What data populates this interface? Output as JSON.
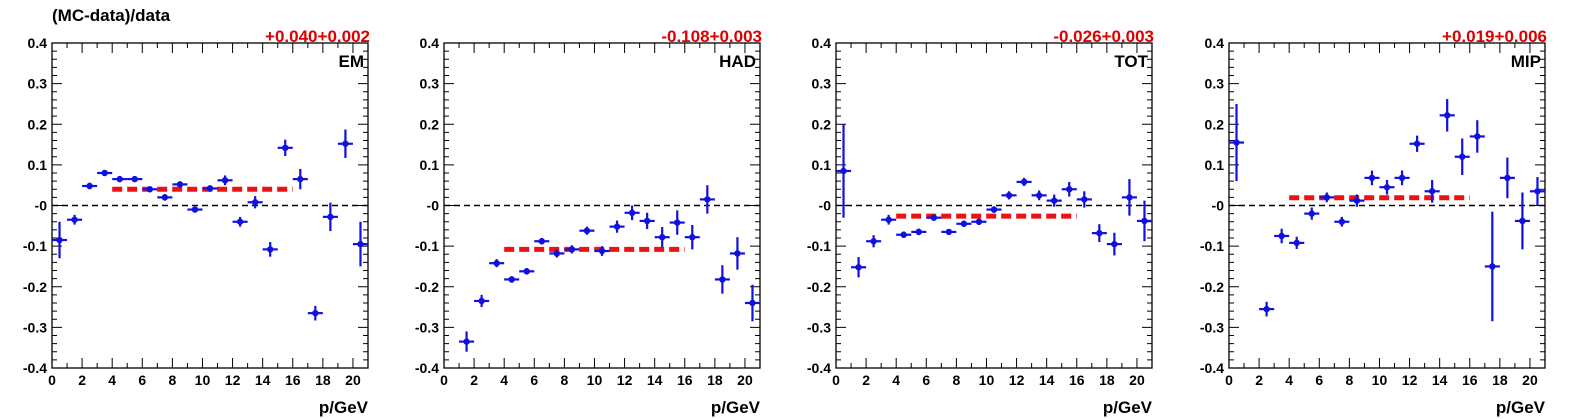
{
  "figure": {
    "ylabel": "(MC-data)/data",
    "xlabel": "p/GeV"
  },
  "colors": {
    "points": "#1010e0",
    "fit": "#ee1111",
    "annotation": "#dd0000",
    "zero_line": "#000000"
  },
  "chart_data": [
    {
      "type": "scatter",
      "panel_label": "EM",
      "annotation": "+0.040+0.002",
      "xlabel": "p/GeV",
      "xlim": [
        0,
        21
      ],
      "ylim": [
        -0.4,
        0.4
      ],
      "x_ticks": [
        0,
        2,
        4,
        6,
        8,
        10,
        12,
        14,
        16,
        18,
        20
      ],
      "y_ticks": [
        "-0.4",
        "-0.3",
        "-0.2",
        "-0.1",
        "-0",
        "0.1",
        "0.2",
        "0.3",
        "0.4"
      ],
      "fit": {
        "value": 0.04,
        "x_range": [
          4,
          16
        ]
      },
      "points": [
        {
          "x": 0.5,
          "y": -0.085,
          "err": 0.045
        },
        {
          "x": 1.5,
          "y": -0.035,
          "err": 0.012
        },
        {
          "x": 2.5,
          "y": 0.048,
          "err": 0.008
        },
        {
          "x": 3.5,
          "y": 0.08,
          "err": 0.006
        },
        {
          "x": 4.5,
          "y": 0.065,
          "err": 0.006
        },
        {
          "x": 5.5,
          "y": 0.065,
          "err": 0.006
        },
        {
          "x": 6.5,
          "y": 0.04,
          "err": 0.006
        },
        {
          "x": 7.5,
          "y": 0.02,
          "err": 0.008
        },
        {
          "x": 8.5,
          "y": 0.052,
          "err": 0.007
        },
        {
          "x": 9.5,
          "y": -0.01,
          "err": 0.007
        },
        {
          "x": 10.5,
          "y": 0.042,
          "err": 0.008
        },
        {
          "x": 11.5,
          "y": 0.062,
          "err": 0.012
        },
        {
          "x": 12.5,
          "y": -0.04,
          "err": 0.012
        },
        {
          "x": 13.5,
          "y": 0.008,
          "err": 0.015
        },
        {
          "x": 14.5,
          "y": -0.108,
          "err": 0.018
        },
        {
          "x": 15.5,
          "y": 0.142,
          "err": 0.02
        },
        {
          "x": 16.5,
          "y": 0.065,
          "err": 0.025
        },
        {
          "x": 17.5,
          "y": -0.265,
          "err": 0.018
        },
        {
          "x": 18.5,
          "y": -0.028,
          "err": 0.035
        },
        {
          "x": 19.5,
          "y": 0.152,
          "err": 0.035
        },
        {
          "x": 20.5,
          "y": -0.095,
          "err": 0.055
        }
      ]
    },
    {
      "type": "scatter",
      "panel_label": "HAD",
      "annotation": "-0.108+0.003",
      "xlabel": "p/GeV",
      "xlim": [
        0,
        21
      ],
      "ylim": [
        -0.4,
        0.4
      ],
      "x_ticks": [
        0,
        2,
        4,
        6,
        8,
        10,
        12,
        14,
        16,
        18,
        20
      ],
      "y_ticks": [
        "-0.4",
        "-0.3",
        "-0.2",
        "-0.1",
        "-0",
        "0.1",
        "0.2",
        "0.3",
        "0.4"
      ],
      "fit": {
        "value": -0.108,
        "x_range": [
          4,
          16
        ]
      },
      "points": [
        {
          "x": 1.5,
          "y": -0.335,
          "err": 0.025
        },
        {
          "x": 2.5,
          "y": -0.235,
          "err": 0.015
        },
        {
          "x": 3.5,
          "y": -0.142,
          "err": 0.01
        },
        {
          "x": 4.5,
          "y": -0.182,
          "err": 0.008
        },
        {
          "x": 5.5,
          "y": -0.162,
          "err": 0.008
        },
        {
          "x": 6.5,
          "y": -0.088,
          "err": 0.008
        },
        {
          "x": 7.5,
          "y": -0.118,
          "err": 0.01
        },
        {
          "x": 8.5,
          "y": -0.108,
          "err": 0.01
        },
        {
          "x": 9.5,
          "y": -0.062,
          "err": 0.01
        },
        {
          "x": 10.5,
          "y": -0.112,
          "err": 0.012
        },
        {
          "x": 11.5,
          "y": -0.052,
          "err": 0.015
        },
        {
          "x": 12.5,
          "y": -0.018,
          "err": 0.018
        },
        {
          "x": 13.5,
          "y": -0.038,
          "err": 0.02
        },
        {
          "x": 14.5,
          "y": -0.078,
          "err": 0.025
        },
        {
          "x": 15.5,
          "y": -0.042,
          "err": 0.03
        },
        {
          "x": 16.5,
          "y": -0.078,
          "err": 0.03
        },
        {
          "x": 17.5,
          "y": 0.015,
          "err": 0.035
        },
        {
          "x": 18.5,
          "y": -0.182,
          "err": 0.035
        },
        {
          "x": 19.5,
          "y": -0.118,
          "err": 0.04
        },
        {
          "x": 20.5,
          "y": -0.24,
          "err": 0.045
        }
      ]
    },
    {
      "type": "scatter",
      "panel_label": "TOT",
      "annotation": "-0.026+0.003",
      "xlabel": "p/GeV",
      "xlim": [
        0,
        21
      ],
      "ylim": [
        -0.4,
        0.4
      ],
      "x_ticks": [
        0,
        2,
        4,
        6,
        8,
        10,
        12,
        14,
        16,
        18,
        20
      ],
      "y_ticks": [
        "-0.4",
        "-0.3",
        "-0.2",
        "-0.1",
        "-0",
        "0.1",
        "0.2",
        "0.3",
        "0.4"
      ],
      "fit": {
        "value": -0.026,
        "x_range": [
          4,
          16
        ]
      },
      "points": [
        {
          "x": 0.5,
          "y": 0.085,
          "err": 0.115
        },
        {
          "x": 1.5,
          "y": -0.152,
          "err": 0.025
        },
        {
          "x": 2.5,
          "y": -0.088,
          "err": 0.015
        },
        {
          "x": 3.5,
          "y": -0.035,
          "err": 0.012
        },
        {
          "x": 4.5,
          "y": -0.072,
          "err": 0.008
        },
        {
          "x": 5.5,
          "y": -0.065,
          "err": 0.008
        },
        {
          "x": 6.5,
          "y": -0.03,
          "err": 0.007
        },
        {
          "x": 7.5,
          "y": -0.065,
          "err": 0.007
        },
        {
          "x": 8.5,
          "y": -0.045,
          "err": 0.008
        },
        {
          "x": 9.5,
          "y": -0.04,
          "err": 0.008
        },
        {
          "x": 10.5,
          "y": -0.01,
          "err": 0.008
        },
        {
          "x": 11.5,
          "y": 0.025,
          "err": 0.01
        },
        {
          "x": 12.5,
          "y": 0.058,
          "err": 0.01
        },
        {
          "x": 13.5,
          "y": 0.025,
          "err": 0.012
        },
        {
          "x": 14.5,
          "y": 0.012,
          "err": 0.015
        },
        {
          "x": 15.5,
          "y": 0.04,
          "err": 0.018
        },
        {
          "x": 16.5,
          "y": 0.015,
          "err": 0.02
        },
        {
          "x": 17.5,
          "y": -0.068,
          "err": 0.022
        },
        {
          "x": 18.5,
          "y": -0.095,
          "err": 0.028
        },
        {
          "x": 19.5,
          "y": 0.02,
          "err": 0.045
        },
        {
          "x": 20.5,
          "y": -0.038,
          "err": 0.05
        }
      ]
    },
    {
      "type": "scatter",
      "panel_label": "MIP",
      "annotation": "+0.019+0.006",
      "xlabel": "p/GeV",
      "xlim": [
        0,
        21
      ],
      "ylim": [
        -0.4,
        0.4
      ],
      "x_ticks": [
        0,
        2,
        4,
        6,
        8,
        10,
        12,
        14,
        16,
        18,
        20
      ],
      "y_ticks": [
        "-0.4",
        "-0.3",
        "-0.2",
        "-0.1",
        "-0",
        "0.1",
        "0.2",
        "0.3",
        "0.4"
      ],
      "fit": {
        "value": 0.019,
        "x_range": [
          4,
          16
        ]
      },
      "points": [
        {
          "x": 0.5,
          "y": 0.155,
          "err": 0.095
        },
        {
          "x": 2.5,
          "y": -0.255,
          "err": 0.018
        },
        {
          "x": 3.5,
          "y": -0.075,
          "err": 0.018
        },
        {
          "x": 4.5,
          "y": -0.092,
          "err": 0.015
        },
        {
          "x": 5.5,
          "y": -0.02,
          "err": 0.015
        },
        {
          "x": 6.5,
          "y": 0.02,
          "err": 0.012
        },
        {
          "x": 7.5,
          "y": -0.04,
          "err": 0.012
        },
        {
          "x": 8.5,
          "y": 0.012,
          "err": 0.015
        },
        {
          "x": 9.5,
          "y": 0.068,
          "err": 0.018
        },
        {
          "x": 10.5,
          "y": 0.045,
          "err": 0.018
        },
        {
          "x": 11.5,
          "y": 0.068,
          "err": 0.018
        },
        {
          "x": 12.5,
          "y": 0.152,
          "err": 0.02
        },
        {
          "x": 13.5,
          "y": 0.035,
          "err": 0.028
        },
        {
          "x": 14.5,
          "y": 0.222,
          "err": 0.04
        },
        {
          "x": 15.5,
          "y": 0.12,
          "err": 0.045
        },
        {
          "x": 16.5,
          "y": 0.17,
          "err": 0.04
        },
        {
          "x": 17.5,
          "y": -0.15,
          "err": 0.135
        },
        {
          "x": 18.5,
          "y": 0.068,
          "err": 0.05
        },
        {
          "x": 19.5,
          "y": -0.038,
          "err": 0.07
        },
        {
          "x": 20.5,
          "y": 0.035,
          "err": 0.035
        }
      ]
    }
  ]
}
